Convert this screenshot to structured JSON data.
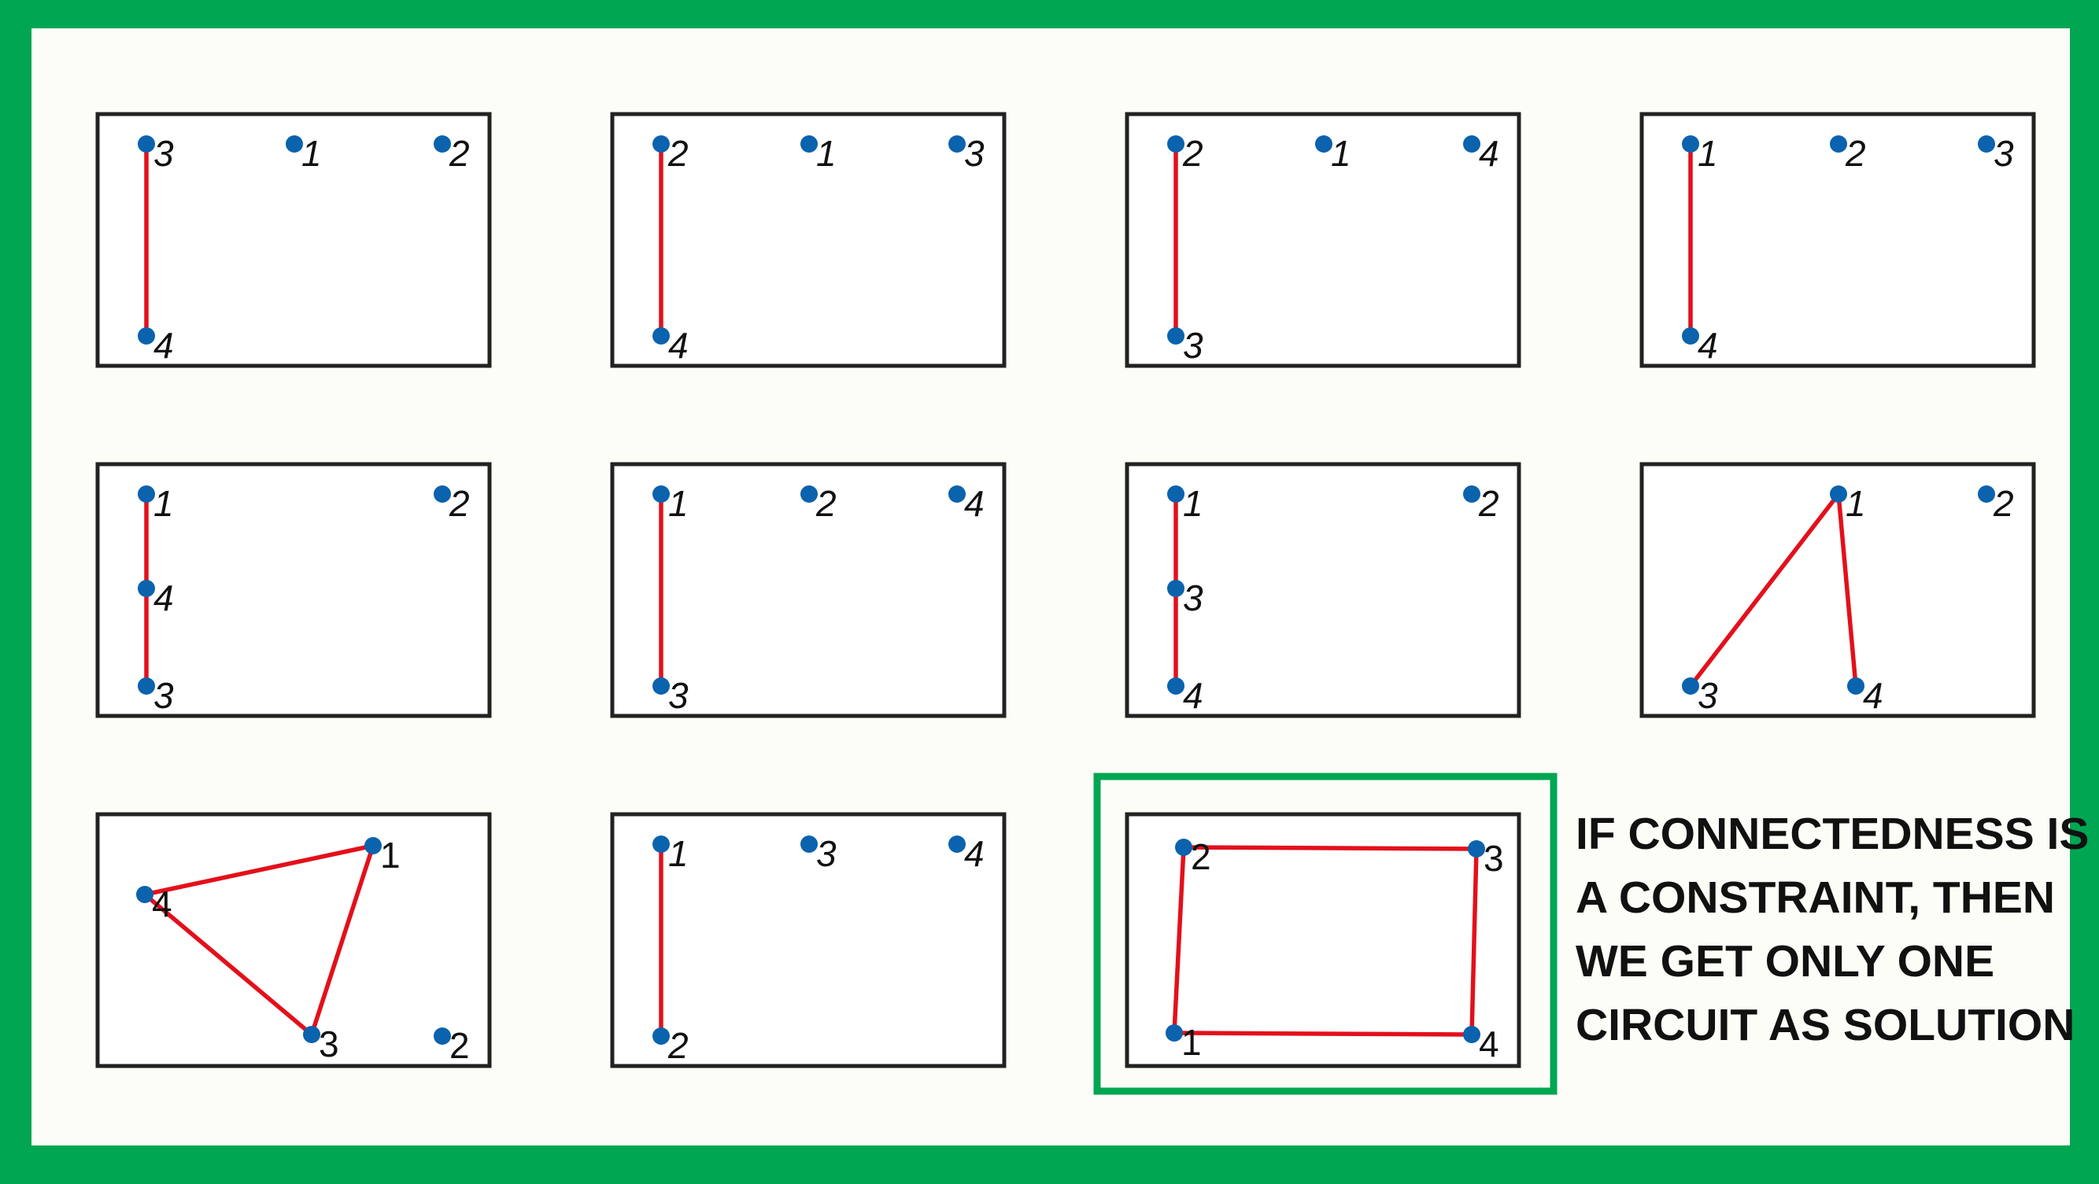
{
  "colors": {
    "border": "#00a651",
    "panel_bg": "#fdfdf8",
    "box_stroke": "#222222",
    "edge": "#e3101b",
    "node": "#0b62ad",
    "label": "#111111",
    "highlight": "#00a651"
  },
  "caption_lines": [
    "IF CONNECTEDNESS IS",
    "A CONSTRAINT, THEN",
    "WE GET ONLY ONE",
    "CIRCUIT AS SOLUTION"
  ],
  "panels": [
    {
      "row": 0,
      "col": 0,
      "nodes": [
        {
          "label": "3",
          "slot": "tl"
        },
        {
          "label": "1",
          "slot": "tm"
        },
        {
          "label": "2",
          "slot": "tr"
        },
        {
          "label": "4",
          "slot": "bl"
        }
      ],
      "edges": [
        [
          "3",
          "4"
        ]
      ]
    },
    {
      "row": 0,
      "col": 1,
      "nodes": [
        {
          "label": "2",
          "slot": "tl"
        },
        {
          "label": "1",
          "slot": "tm"
        },
        {
          "label": "3",
          "slot": "tr"
        },
        {
          "label": "4",
          "slot": "bl"
        }
      ],
      "edges": [
        [
          "2",
          "4"
        ]
      ]
    },
    {
      "row": 0,
      "col": 2,
      "nodes": [
        {
          "label": "2",
          "slot": "tl"
        },
        {
          "label": "1",
          "slot": "tm"
        },
        {
          "label": "4",
          "slot": "tr"
        },
        {
          "label": "3",
          "slot": "bl"
        }
      ],
      "edges": [
        [
          "2",
          "3"
        ]
      ]
    },
    {
      "row": 0,
      "col": 3,
      "nodes": [
        {
          "label": "1",
          "slot": "tl"
        },
        {
          "label": "2",
          "slot": "tm"
        },
        {
          "label": "3",
          "slot": "tr"
        },
        {
          "label": "4",
          "slot": "bl"
        }
      ],
      "edges": [
        [
          "1",
          "4"
        ]
      ]
    },
    {
      "row": 1,
      "col": 0,
      "nodes": [
        {
          "label": "1",
          "slot": "tl"
        },
        {
          "label": "2",
          "slot": "tr"
        },
        {
          "label": "4",
          "slot": "ml"
        },
        {
          "label": "3",
          "slot": "bl"
        }
      ],
      "edges": [
        [
          "1",
          "4"
        ],
        [
          "4",
          "3"
        ]
      ]
    },
    {
      "row": 1,
      "col": 1,
      "nodes": [
        {
          "label": "1",
          "slot": "tl"
        },
        {
          "label": "2",
          "slot": "tm"
        },
        {
          "label": "4",
          "slot": "tr"
        },
        {
          "label": "3",
          "slot": "bl"
        }
      ],
      "edges": [
        [
          "1",
          "3"
        ]
      ]
    },
    {
      "row": 1,
      "col": 2,
      "nodes": [
        {
          "label": "1",
          "slot": "tl"
        },
        {
          "label": "2",
          "slot": "tr"
        },
        {
          "label": "3",
          "slot": "ml"
        },
        {
          "label": "4",
          "slot": "bl"
        }
      ],
      "edges": [
        [
          "1",
          "3"
        ],
        [
          "3",
          "4"
        ]
      ]
    },
    {
      "row": 1,
      "col": 3,
      "nodes": [
        {
          "label": "1",
          "slot": "tm"
        },
        {
          "label": "2",
          "slot": "tr"
        },
        {
          "label": "3",
          "slot": "bl"
        },
        {
          "label": "4",
          "slot": "bm"
        }
      ],
      "edges": [
        [
          "1",
          "3"
        ],
        [
          "1",
          "4"
        ]
      ]
    },
    {
      "row": 2,
      "col": 0,
      "upright": true,
      "nodes": [
        {
          "label": "1",
          "slot": "tmr"
        },
        {
          "label": "4",
          "slot": "ul"
        },
        {
          "label": "3",
          "slot": "bml"
        },
        {
          "label": "2",
          "slot": "brr"
        }
      ],
      "edges": [
        [
          "1",
          "4"
        ],
        [
          "4",
          "3"
        ],
        [
          "3",
          "1"
        ]
      ]
    },
    {
      "row": 2,
      "col": 1,
      "nodes": [
        {
          "label": "1",
          "slot": "tl"
        },
        {
          "label": "3",
          "slot": "tm"
        },
        {
          "label": "4",
          "slot": "tr"
        },
        {
          "label": "2",
          "slot": "bl"
        }
      ],
      "edges": [
        [
          "1",
          "2"
        ]
      ]
    },
    {
      "row": 2,
      "col": 2,
      "upright": true,
      "highlight": true,
      "nodes": [
        {
          "label": "2",
          "slot": "tl"
        },
        {
          "label": "3",
          "slot": "tr"
        },
        {
          "label": "1",
          "slot": "bl"
        },
        {
          "label": "4",
          "slot": "br"
        }
      ],
      "edges": [
        [
          "2",
          "3"
        ],
        [
          "3",
          "4"
        ],
        [
          "4",
          "1"
        ],
        [
          "1",
          "2"
        ]
      ]
    }
  ]
}
